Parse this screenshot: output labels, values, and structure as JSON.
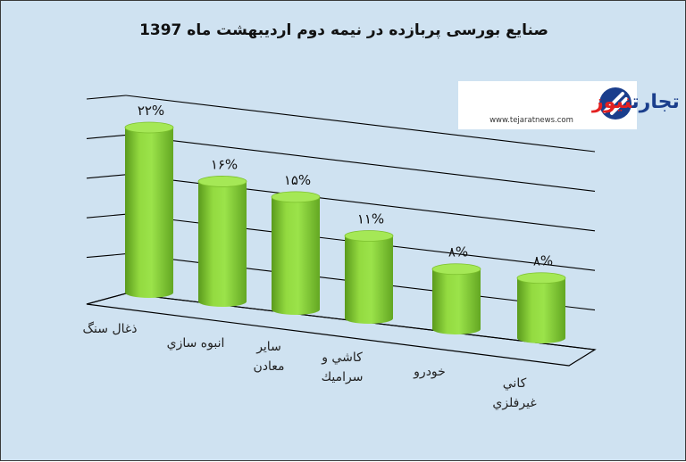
{
  "chart_data": {
    "type": "bar",
    "title": "صنایع بورسی پربازده در نیمه دوم اردیبهشت ماه 1397",
    "categories": [
      [
        "ذغال سنگ"
      ],
      [
        "انبوه سازي"
      ],
      [
        "ساير",
        "معادن"
      ],
      [
        "كاشي و",
        "سراميك"
      ],
      [
        "خودرو"
      ],
      [
        "كاني",
        "غيرفلزي"
      ]
    ],
    "values": [
      22,
      16,
      15,
      11,
      8,
      8
    ],
    "data_labels": [
      "۲۲%",
      "۱۶%",
      "۱۵%",
      "۱۱%",
      "۸%",
      "۸%"
    ],
    "ylim": [
      0,
      25
    ],
    "grid": true,
    "bar_color": "#8bd33c",
    "background_color": "#cfe2f1"
  },
  "watermark": {
    "brand_blue": "تجارت",
    "brand_red": "نیوز",
    "url": "www.tejaratnews.com",
    "blue": "#1a3e8c",
    "red": "#e32020"
  }
}
